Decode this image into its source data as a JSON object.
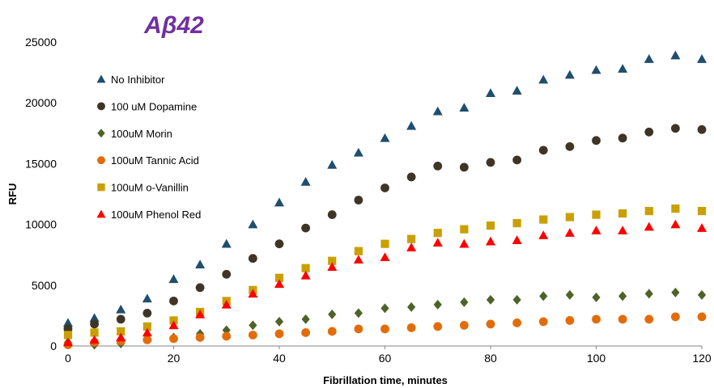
{
  "chart_data": {
    "type": "scatter",
    "title": "Aβ42",
    "title_color": "#7030A0",
    "xlabel": "Fibrillation time, minutes",
    "ylabel": "RFU",
    "xlim": [
      0,
      120
    ],
    "ylim": [
      0,
      25000
    ],
    "xticks": [
      0,
      20,
      40,
      60,
      80,
      100,
      120
    ],
    "yticks": [
      0,
      5000,
      10000,
      15000,
      20000,
      25000
    ],
    "grid": false,
    "legend_position": "top-left",
    "x": [
      0,
      5,
      10,
      15,
      20,
      25,
      30,
      35,
      40,
      45,
      50,
      55,
      60,
      65,
      70,
      75,
      80,
      85,
      90,
      95,
      100,
      105,
      110,
      115,
      120
    ],
    "series": [
      {
        "name": "No Inhibitor",
        "marker": "triangle",
        "color": "#1F4E6E",
        "values": [
          1900,
          2300,
          3000,
          3900,
          5500,
          6700,
          8400,
          10000,
          11800,
          13500,
          14900,
          15900,
          17100,
          18100,
          19300,
          19600,
          20800,
          21000,
          21900,
          22300,
          22700,
          22800,
          23600,
          23900,
          23600
        ]
      },
      {
        "name": "100 uM Dopamine",
        "marker": "circle",
        "color": "#3F3526",
        "values": [
          1400,
          1800,
          2200,
          2700,
          3700,
          4800,
          5900,
          7200,
          8400,
          9700,
          10800,
          12000,
          13000,
          13900,
          14800,
          14700,
          15100,
          15300,
          16100,
          16400,
          16900,
          17100,
          17600,
          17900,
          17800
        ]
      },
      {
        "name": "100uM Morin",
        "marker": "diamond",
        "color": "#4F6228",
        "values": [
          300,
          100,
          200,
          600,
          700,
          1000,
          1300,
          1700,
          2000,
          2200,
          2600,
          2700,
          3100,
          3200,
          3400,
          3600,
          3800,
          3800,
          4100,
          4200,
          4000,
          4100,
          4300,
          4400,
          4200
        ]
      },
      {
        "name": "100uM Tannic Acid",
        "marker": "circle",
        "color": "#E36C0A",
        "values": [
          100,
          300,
          400,
          500,
          600,
          700,
          800,
          900,
          1000,
          1100,
          1200,
          1400,
          1400,
          1500,
          1600,
          1700,
          1800,
          1900,
          2000,
          2100,
          2200,
          2200,
          2200,
          2400,
          2400
        ]
      },
      {
        "name": "100uM o-Vanillin",
        "marker": "square",
        "color": "#C9A000",
        "values": [
          900,
          1100,
          1200,
          1600,
          2100,
          2800,
          3700,
          4600,
          5600,
          6400,
          7000,
          7800,
          8400,
          8800,
          9300,
          9600,
          9900,
          10100,
          10400,
          10600,
          10800,
          10900,
          11100,
          11300,
          11100
        ]
      },
      {
        "name": "100uM Phenol Red",
        "marker": "triangle",
        "color": "#FF0000",
        "values": [
          300,
          500,
          700,
          1100,
          1700,
          2600,
          3400,
          4300,
          5100,
          5800,
          6500,
          7100,
          7300,
          8100,
          8500,
          8400,
          8600,
          8700,
          9100,
          9300,
          9500,
          9500,
          9800,
          10000,
          9700
        ]
      }
    ]
  }
}
